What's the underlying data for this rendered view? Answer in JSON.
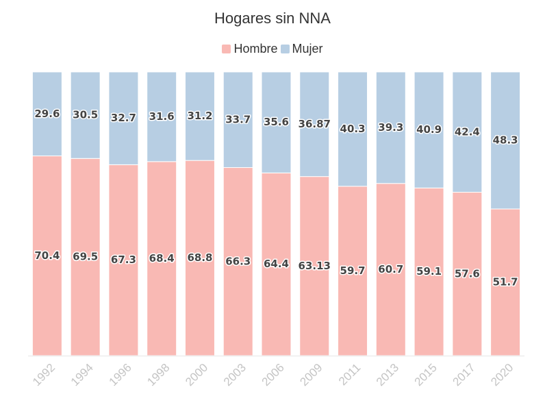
{
  "chart_data": {
    "type": "bar",
    "stacked": true,
    "title": "Hogares sin NNA",
    "xlabel": "",
    "ylabel": "",
    "ylim": [
      0,
      100
    ],
    "legend_position": "top-center",
    "categories": [
      "1992",
      "1994",
      "1996",
      "1998",
      "2000",
      "2003",
      "2006",
      "2009",
      "2011",
      "2013",
      "2015",
      "2017",
      "2020"
    ],
    "series": [
      {
        "name": "Hombre",
        "color": "#f9b9b4",
        "values": [
          70.4,
          69.5,
          67.3,
          68.4,
          68.8,
          66.3,
          64.4,
          63.13,
          59.7,
          60.7,
          59.1,
          57.6,
          51.7
        ],
        "labels": [
          "70.4",
          "69.5",
          "67.3",
          "68.4",
          "68.8",
          "66.3",
          "64.4",
          "63.13",
          "59.7",
          "60.7",
          "59.1",
          "57.6",
          "51.7"
        ]
      },
      {
        "name": "Mujer",
        "color": "#b7cee3",
        "values": [
          29.6,
          30.5,
          32.7,
          31.6,
          31.2,
          33.7,
          35.6,
          36.87,
          40.3,
          39.3,
          40.9,
          42.4,
          48.3
        ],
        "labels": [
          "29.6",
          "30.5",
          "32.7",
          "31.6",
          "31.2",
          "33.7",
          "35.6",
          "36.87",
          "40.3",
          "39.3",
          "40.9",
          "42.4",
          "48.3"
        ]
      }
    ]
  }
}
